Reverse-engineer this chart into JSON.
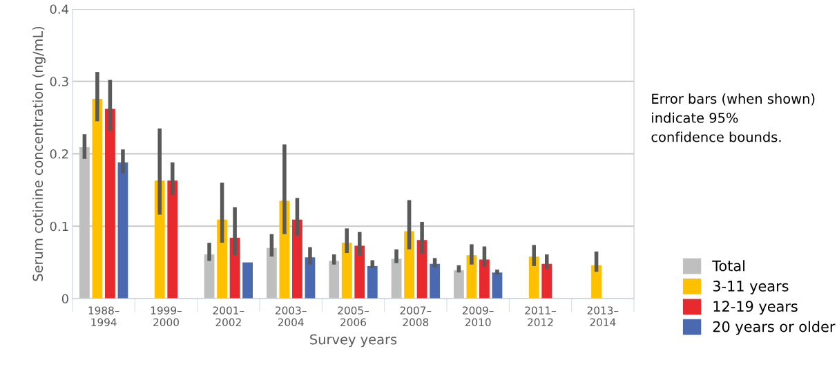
{
  "chart_data": {
    "type": "bar",
    "xlabel": "Survey years",
    "ylabel": "Serum cotinine concentration (ng/mL)",
    "categories": [
      "1988–\n1994",
      "1999–\n2000",
      "2001–\n2002",
      "2003–\n2004",
      "2005–\n2006",
      "2007–\n2008",
      "2009–\n2010",
      "2011–\n2012",
      "2013–\n2014"
    ],
    "series": [
      {
        "name": "Total",
        "color": "#bfbfbf",
        "values": [
          0.209,
          null,
          0.061,
          0.07,
          0.052,
          0.055,
          0.039,
          null,
          null
        ],
        "errors": [
          [
            0.193,
            0.227
          ],
          null,
          [
            0.052,
            0.077
          ],
          [
            0.058,
            0.089
          ],
          [
            0.047,
            0.061
          ],
          [
            0.049,
            0.068
          ],
          [
            0.036,
            0.046
          ],
          null,
          null
        ]
      },
      {
        "name": "3-11 years",
        "color": "#ffc000",
        "values": [
          0.276,
          0.163,
          0.109,
          0.135,
          0.077,
          0.093,
          0.06,
          0.058,
          0.046
        ],
        "errors": [
          [
            0.245,
            0.313
          ],
          [
            0.116,
            0.235
          ],
          [
            0.077,
            0.16
          ],
          [
            0.089,
            0.213
          ],
          [
            0.063,
            0.097
          ],
          [
            0.068,
            0.136
          ],
          [
            0.047,
            0.075
          ],
          [
            0.045,
            0.074
          ],
          [
            0.037,
            0.065
          ]
        ]
      },
      {
        "name": "12-19 years",
        "color": "#e8292e",
        "values": [
          0.262,
          0.163,
          0.084,
          0.109,
          0.073,
          0.081,
          0.054,
          0.048,
          null
        ],
        "errors": [
          [
            0.232,
            0.302
          ],
          [
            0.143,
            0.188
          ],
          [
            0.06,
            0.126
          ],
          [
            0.087,
            0.139
          ],
          [
            0.06,
            0.092
          ],
          [
            0.062,
            0.106
          ],
          [
            0.044,
            0.072
          ],
          [
            0.041,
            0.061
          ],
          null
        ]
      },
      {
        "name": "20 years or older",
        "color": "#4a69b0",
        "values": [
          0.188,
          null,
          0.05,
          0.057,
          0.045,
          0.048,
          0.036,
          null,
          null
        ],
        "errors": [
          [
            0.173,
            0.206
          ],
          null,
          null,
          [
            0.047,
            0.071
          ],
          [
            0.042,
            0.053
          ],
          [
            0.043,
            0.056
          ],
          [
            0.033,
            0.04
          ],
          null,
          null
        ]
      }
    ],
    "ylim": [
      0,
      0.4
    ],
    "yticks": [
      {
        "value": 0,
        "label": "0"
      },
      0.1,
      0.2,
      0.3,
      0.4
    ],
    "grid": "y",
    "legend": "bottom right",
    "annotations": [
      "Error bars (when shown)\nindicate 95%\nconfidence bounds."
    ]
  }
}
